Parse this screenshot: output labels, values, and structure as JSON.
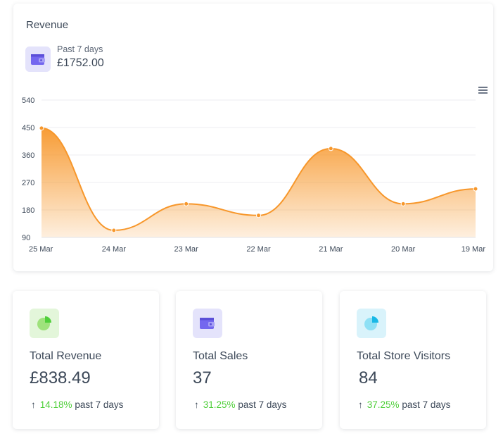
{
  "revenue_card": {
    "title": "Revenue",
    "period_label": "Past 7 days",
    "total": "£1752.00"
  },
  "chart_data": {
    "type": "area",
    "categories": [
      "25 Mar",
      "24 Mar",
      "23 Mar",
      "22 Mar",
      "21 Mar",
      "20 Mar",
      "19 Mar"
    ],
    "series": [
      {
        "values": [
          448,
          113,
          200,
          162,
          381,
          200,
          249
        ]
      }
    ],
    "y_ticks": [
      90,
      180,
      270,
      360,
      450,
      540
    ],
    "ylim": [
      90,
      540
    ],
    "color": "#f7972b",
    "grid": true
  },
  "stats": [
    {
      "label": "Total Revenue",
      "value": "£838.49",
      "change": "14.18%",
      "suffix": "past 7 days",
      "arrow": "↑",
      "icon": "pie-chart-icon",
      "icon_bg": "#e3f6da",
      "icon_color": "#6fd244"
    },
    {
      "label": "Total Sales",
      "value": "37",
      "change": "31.25%",
      "suffix": "past 7 days",
      "arrow": "↑",
      "icon": "wallet-icon",
      "icon_bg": "#e4e3fb",
      "icon_color": "#7467ef"
    },
    {
      "label": "Total Store Visitors",
      "value": "84",
      "change": "37.25%",
      "suffix": "past 7 days",
      "arrow": "↑",
      "icon": "pie-chart-icon",
      "icon_bg": "#d9f3fb",
      "icon_color": "#3cc8ee"
    }
  ]
}
